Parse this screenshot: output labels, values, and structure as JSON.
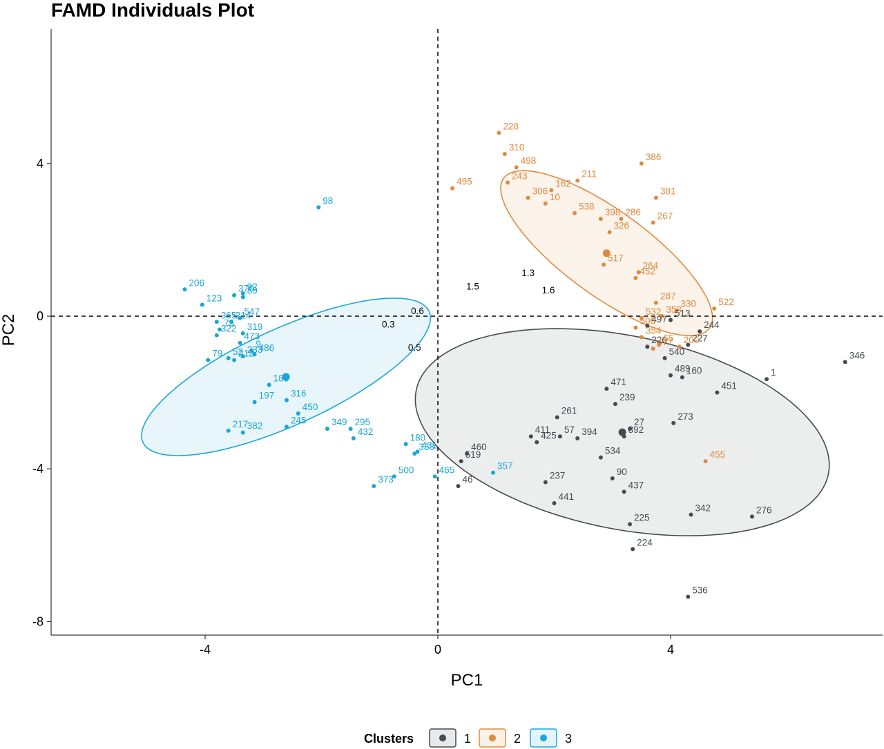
{
  "chart_data": {
    "type": "scatter",
    "title": "FAMD  Individuals Plot",
    "xlabel": "PC1",
    "ylabel": "PC2",
    "xlim": [
      -6.8,
      7.6
    ],
    "ylim": [
      -8.4,
      7.6
    ],
    "xticks": [
      -4,
      0,
      4
    ],
    "yticks": [
      -8,
      -4,
      0,
      4
    ],
    "grid": false,
    "reference_lines": {
      "x": 0,
      "y": 0,
      "style": "dashed"
    },
    "legend": {
      "title": "Clusters",
      "placement": "bottom",
      "entries": [
        "1",
        "2",
        "3"
      ]
    },
    "colors": {
      "1": "#454b4f",
      "2": "#e08a3c",
      "3": "#1aa6d8"
    },
    "series": [
      {
        "name": "1",
        "color": "#454b4f",
        "ellipse": {
          "cx": 3.17,
          "cy": -3.04,
          "rx": 7.5,
          "ry": 4.88,
          "angle": -24.6
        },
        "centroid": [
          3.17,
          -3.04
        ],
        "points": [
          {
            "label": "346",
            "x": 7.0,
            "y": -1.2
          },
          {
            "label": "1",
            "x": 5.65,
            "y": -1.65
          },
          {
            "label": "451",
            "x": 4.8,
            "y": -2.0
          },
          {
            "label": "160",
            "x": 4.2,
            "y": -1.6
          },
          {
            "label": "489",
            "x": 4.0,
            "y": -1.55
          },
          {
            "label": "540",
            "x": 3.9,
            "y": -1.1
          },
          {
            "label": "227",
            "x": 4.3,
            "y": -0.75
          },
          {
            "label": "244",
            "x": 4.5,
            "y": -0.4
          },
          {
            "label": "513",
            "x": 4.0,
            "y": -0.1
          },
          {
            "label": "497",
            "x": 3.6,
            "y": -0.25
          },
          {
            "label": "226",
            "x": 3.6,
            "y": -0.8
          },
          {
            "label": "471",
            "x": 2.9,
            "y": -1.9
          },
          {
            "label": "261",
            "x": 2.05,
            "y": -2.65
          },
          {
            "label": "239",
            "x": 3.05,
            "y": -2.3
          },
          {
            "label": "273",
            "x": 4.05,
            "y": -2.8
          },
          {
            "label": "27",
            "x": 3.3,
            "y": -2.95
          },
          {
            "label": "392",
            "x": 3.2,
            "y": -3.15
          },
          {
            "label": "411",
            "x": 1.6,
            "y": -3.15
          },
          {
            "label": "425",
            "x": 1.7,
            "y": -3.3
          },
          {
            "label": "57",
            "x": 2.1,
            "y": -3.15
          },
          {
            "label": "394",
            "x": 2.4,
            "y": -3.2
          },
          {
            "label": "534",
            "x": 2.8,
            "y": -3.7
          },
          {
            "label": "90",
            "x": 3.0,
            "y": -4.25
          },
          {
            "label": "437",
            "x": 3.2,
            "y": -4.6
          },
          {
            "label": "460",
            "x": 0.5,
            "y": -3.6
          },
          {
            "label": "519",
            "x": 0.4,
            "y": -3.8
          },
          {
            "label": "46",
            "x": 0.35,
            "y": -4.45
          },
          {
            "label": "237",
            "x": 1.85,
            "y": -4.35
          },
          {
            "label": "441",
            "x": 2.0,
            "y": -4.9
          },
          {
            "label": "225",
            "x": 3.3,
            "y": -5.45
          },
          {
            "label": "342",
            "x": 4.35,
            "y": -5.2
          },
          {
            "label": "276",
            "x": 5.4,
            "y": -5.25
          },
          {
            "label": "224",
            "x": 3.35,
            "y": -6.1
          },
          {
            "label": "536",
            "x": 4.3,
            "y": -7.35
          }
        ]
      },
      {
        "name": "2",
        "color": "#e08a3c",
        "ellipse": {
          "cx": 2.9,
          "cy": 1.65,
          "rx": 5.35,
          "ry": 1.82,
          "angle": -51.2
        },
        "centroid": [
          2.9,
          1.65
        ],
        "points": [
          {
            "label": "228",
            "x": 1.05,
            "y": 4.8
          },
          {
            "label": "310",
            "x": 1.15,
            "y": 4.25
          },
          {
            "label": "498",
            "x": 1.35,
            "y": 3.9
          },
          {
            "label": "243",
            "x": 1.2,
            "y": 3.5
          },
          {
            "label": "306",
            "x": 1.55,
            "y": 3.1
          },
          {
            "label": "162",
            "x": 1.95,
            "y": 3.3
          },
          {
            "label": "211",
            "x": 2.4,
            "y": 3.55
          },
          {
            "label": "10",
            "x": 1.85,
            "y": 2.95
          },
          {
            "label": "538",
            "x": 2.35,
            "y": 2.7
          },
          {
            "label": "495",
            "x": 0.25,
            "y": 3.35
          },
          {
            "label": "386",
            "x": 3.5,
            "y": 4.0
          },
          {
            "label": "381",
            "x": 3.75,
            "y": 3.1
          },
          {
            "label": "286",
            "x": 3.15,
            "y": 2.55
          },
          {
            "label": "267",
            "x": 3.7,
            "y": 2.45
          },
          {
            "label": "398",
            "x": 2.8,
            "y": 2.55
          },
          {
            "label": "326",
            "x": 2.95,
            "y": 2.2
          },
          {
            "label": "517",
            "x": 2.85,
            "y": 1.35
          },
          {
            "label": "264",
            "x": 3.45,
            "y": 1.15
          },
          {
            "label": "452",
            "x": 3.4,
            "y": 1.0
          },
          {
            "label": "287",
            "x": 3.75,
            "y": 0.35
          },
          {
            "label": "330",
            "x": 4.1,
            "y": 0.15
          },
          {
            "label": "522",
            "x": 4.75,
            "y": 0.2
          },
          {
            "label": "532",
            "x": 3.5,
            "y": -0.05
          },
          {
            "label": "353",
            "x": 3.85,
            "y": 0.0
          },
          {
            "label": "506",
            "x": 3.4,
            "y": -0.3
          },
          {
            "label": "354",
            "x": 3.5,
            "y": -0.55
          },
          {
            "label": "65",
            "x": 3.8,
            "y": -0.75
          },
          {
            "label": "477",
            "x": 3.7,
            "y": -0.85
          },
          {
            "label": "200",
            "x": 4.15,
            "y": -0.8
          },
          {
            "label": "455",
            "x": 4.6,
            "y": -3.8
          }
        ]
      },
      {
        "name": "3",
        "color": "#1aa6d8",
        "ellipse": {
          "cx": -2.61,
          "cy": -1.59,
          "rx": 6.05,
          "ry": 2.25,
          "angle": 38.0
        },
        "centroid": [
          -2.61,
          -1.59
        ],
        "points": [
          {
            "label": "98",
            "x": -2.05,
            "y": 2.85
          },
          {
            "label": "206",
            "x": -4.35,
            "y": 0.7
          },
          {
            "label": "123",
            "x": -4.05,
            "y": 0.3
          },
          {
            "label": "370",
            "x": -3.5,
            "y": 0.55
          },
          {
            "label": "92",
            "x": -3.35,
            "y": 0.6
          },
          {
            "label": "89",
            "x": -3.35,
            "y": 0.5
          },
          {
            "label": "365",
            "x": -3.8,
            "y": -0.15
          },
          {
            "label": "214",
            "x": -3.55,
            "y": -0.15
          },
          {
            "label": "547",
            "x": -3.4,
            "y": -0.05
          },
          {
            "label": "319",
            "x": -3.35,
            "y": -0.45
          },
          {
            "label": "75",
            "x": -3.75,
            "y": -0.35
          },
          {
            "label": "322",
            "x": -3.8,
            "y": -0.5
          },
          {
            "label": "473",
            "x": -3.4,
            "y": -0.7
          },
          {
            "label": "9",
            "x": -3.2,
            "y": -0.9
          },
          {
            "label": "486",
            "x": -3.15,
            "y": -1.0
          },
          {
            "label": "79",
            "x": -3.95,
            "y": -1.15
          },
          {
            "label": "52",
            "x": -3.6,
            "y": -1.1
          },
          {
            "label": "212",
            "x": -3.5,
            "y": -1.15
          },
          {
            "label": "233",
            "x": -3.35,
            "y": -1.05
          },
          {
            "label": "183",
            "x": -2.9,
            "y": -1.8
          },
          {
            "label": "197",
            "x": -3.15,
            "y": -2.25
          },
          {
            "label": "316",
            "x": -2.6,
            "y": -2.2
          },
          {
            "label": "450",
            "x": -2.4,
            "y": -2.55
          },
          {
            "label": "217",
            "x": -3.6,
            "y": -3.0
          },
          {
            "label": "382",
            "x": -3.35,
            "y": -3.05
          },
          {
            "label": "245",
            "x": -2.6,
            "y": -2.9
          },
          {
            "label": "349",
            "x": -1.9,
            "y": -2.95
          },
          {
            "label": "295",
            "x": -1.5,
            "y": -2.95
          },
          {
            "label": "432",
            "x": -1.45,
            "y": -3.2
          },
          {
            "label": "180",
            "x": -0.55,
            "y": -3.35
          },
          {
            "label": "431",
            "x": -0.35,
            "y": -3.55
          },
          {
            "label": "333",
            "x": -0.4,
            "y": -3.6
          },
          {
            "label": "500",
            "x": -0.75,
            "y": -4.2
          },
          {
            "label": "373",
            "x": -1.1,
            "y": -4.45
          },
          {
            "label": "465",
            "x": -0.05,
            "y": -4.2
          },
          {
            "label": "357",
            "x": 0.95,
            "y": -4.1
          }
        ]
      }
    ],
    "supplementary": [
      {
        "label": "1.5",
        "x": 0.6,
        "y": 0.7
      },
      {
        "label": "1.3",
        "x": 1.55,
        "y": 1.05
      },
      {
        "label": "1.6",
        "x": 1.9,
        "y": 0.6
      },
      {
        "label": "0.6",
        "x": -0.35,
        "y": 0.05
      },
      {
        "label": "0.3",
        "x": -0.85,
        "y": -0.3
      },
      {
        "label": "0.5",
        "x": -0.4,
        "y": -0.9
      }
    ]
  }
}
